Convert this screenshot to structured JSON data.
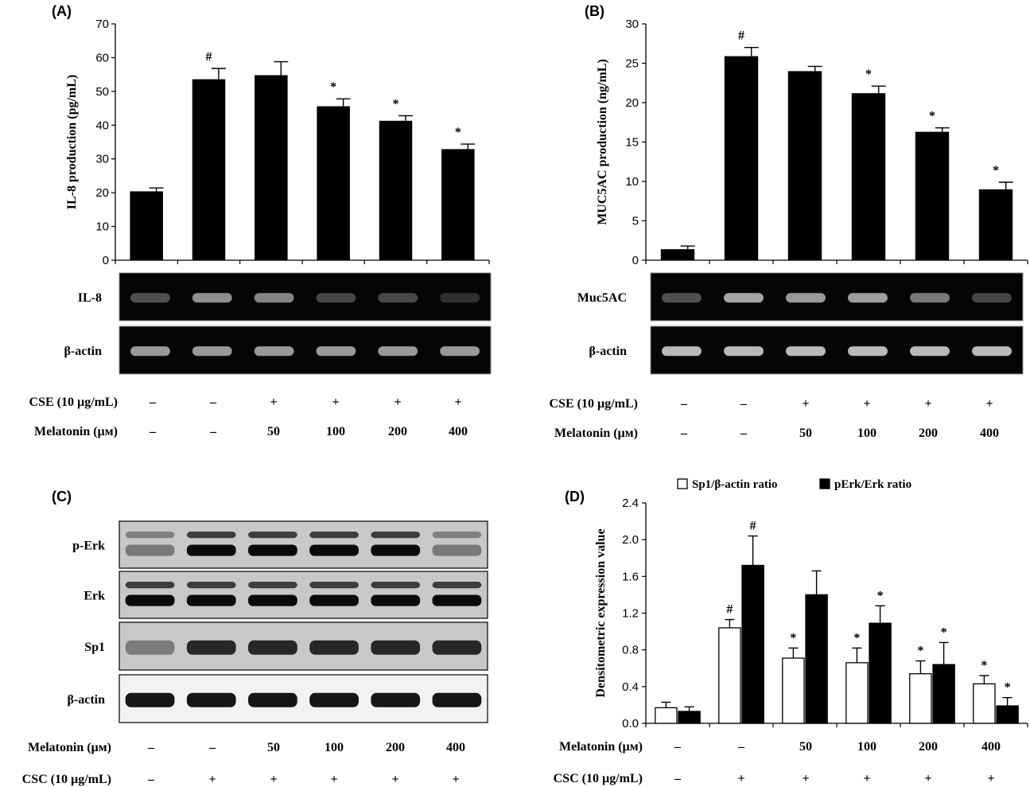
{
  "chart_data": [
    {
      "panel": "(A)",
      "type": "bar",
      "ylabel": "IL-8 production (pg/mL)",
      "ylim": [
        0,
        70
      ],
      "yticks": [
        "0",
        "10",
        "20",
        "30",
        "40",
        "50",
        "60",
        "70"
      ],
      "values": [
        20.4,
        53.6,
        54.8,
        45.6,
        41.3,
        32.9
      ],
      "errors": [
        1.0,
        3.2,
        4.0,
        2.2,
        1.5,
        1.5
      ],
      "markers": [
        "",
        "#",
        "",
        "*",
        "*",
        "*"
      ],
      "gel_labels": [
        "IL-8",
        "β-actin"
      ],
      "gel_intensity": [
        [
          0.35,
          0.65,
          0.6,
          0.3,
          0.32,
          0.2
        ],
        [
          0.7,
          0.7,
          0.7,
          0.7,
          0.7,
          0.7
        ]
      ],
      "conditions": [
        {
          "label": "CSE (10 µg/mL)",
          "values": [
            "–",
            "–",
            "+",
            "+",
            "+",
            "+"
          ]
        },
        {
          "label": "Melatonin (µм)",
          "values": [
            "–",
            "–",
            "50",
            "100",
            "200",
            "400"
          ]
        }
      ]
    },
    {
      "panel": "(B)",
      "type": "bar",
      "ylabel": "MUC5AC production (ng/mL)",
      "ylim": [
        0,
        30
      ],
      "yticks": [
        "0",
        "5",
        "10",
        "15",
        "20",
        "25",
        "30"
      ],
      "values": [
        1.4,
        25.9,
        24.0,
        21.2,
        16.3,
        9.0
      ],
      "errors": [
        0.4,
        1.1,
        0.6,
        0.9,
        0.5,
        0.9
      ],
      "markers": [
        "",
        "#",
        "",
        "*",
        "*",
        "*"
      ],
      "gel_labels": [
        "Muc5AC",
        "β-actin"
      ],
      "gel_intensity": [
        [
          0.35,
          0.75,
          0.7,
          0.72,
          0.55,
          0.3
        ],
        [
          0.85,
          0.85,
          0.85,
          0.85,
          0.85,
          0.85
        ]
      ],
      "conditions": [
        {
          "label": "CSE (10 µg/mL)",
          "values": [
            "–",
            "–",
            "+",
            "+",
            "+",
            "+"
          ]
        },
        {
          "label": "Melatonin (µм)",
          "values": [
            "–",
            "–",
            "50",
            "100",
            "200",
            "400"
          ]
        }
      ]
    },
    {
      "panel": "(C)",
      "type": "blot",
      "blot_labels": [
        "p-Erk",
        "Erk",
        "Sp1",
        "β-actin"
      ],
      "conditions": [
        {
          "label": "Melatonin (µм)",
          "values": [
            "–",
            "–",
            "50",
            "100",
            "200",
            "400"
          ]
        },
        {
          "label": "CSC (10 µg/mL)",
          "values": [
            "–",
            "+",
            "+",
            "+",
            "+",
            "+"
          ]
        }
      ]
    },
    {
      "panel": "(D)",
      "type": "bar",
      "ylabel": "Densitometric expression value",
      "ylim": [
        0,
        2.4
      ],
      "yticks": [
        "0.0",
        "0.4",
        "0.8",
        "1.2",
        "1.6",
        "2.0",
        "2.4"
      ],
      "legend_position": "top",
      "series": [
        {
          "name": "Sp1/β-actin ratio",
          "values": [
            0.17,
            1.04,
            0.71,
            0.66,
            0.54,
            0.43
          ],
          "errors": [
            0.06,
            0.09,
            0.11,
            0.16,
            0.14,
            0.09
          ],
          "markers": [
            "",
            "#",
            "*",
            "*",
            "*",
            "*"
          ],
          "color": "#ffffff"
        },
        {
          "name": "pErk/Erk ratio",
          "values": [
            0.13,
            1.72,
            1.4,
            1.09,
            0.64,
            0.19
          ],
          "errors": [
            0.05,
            0.32,
            0.26,
            0.19,
            0.24,
            0.09
          ],
          "markers": [
            "",
            "#",
            "",
            "*",
            "*",
            "*"
          ],
          "color": "#000000"
        }
      ],
      "conditions": [
        {
          "label": "Melatonin (µм)",
          "values": [
            "–",
            "–",
            "50",
            "100",
            "200",
            "400"
          ]
        },
        {
          "label": "CSC (10 µg/mL)",
          "values": [
            "–",
            "+",
            "+",
            "+",
            "+",
            "+"
          ]
        }
      ]
    }
  ]
}
